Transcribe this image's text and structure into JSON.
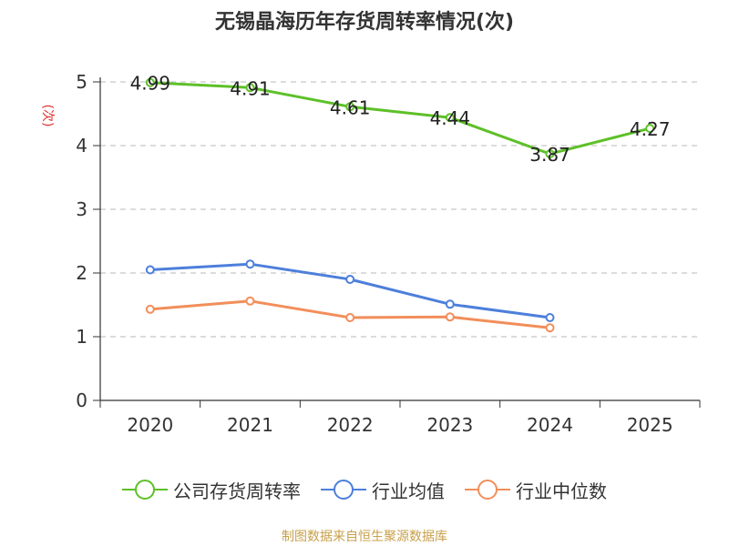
{
  "chart_data": {
    "type": "line",
    "title": "无锡晶海历年存货周转率情况(次)",
    "ylabel": "(次)",
    "xlabel": "",
    "categories": [
      "2020",
      "2021",
      "2022",
      "2023",
      "2024",
      "2025"
    ],
    "ylim": [
      0,
      5
    ],
    "yticks": [
      "0",
      "1",
      "2",
      "3",
      "4",
      "5"
    ],
    "grid": true,
    "legend_position": "bottom",
    "series": [
      {
        "name": "公司存货周转率",
        "color": "#5dc028",
        "values": [
          4.99,
          4.91,
          4.61,
          4.44,
          3.87,
          4.27
        ],
        "labels": [
          "4.99",
          "4.91",
          "4.61",
          "4.44",
          "3.87",
          "4.27"
        ],
        "show_labels": true
      },
      {
        "name": "行业均值",
        "color": "#4d7fdb",
        "values": [
          2.05,
          2.14,
          1.9,
          1.51,
          1.3,
          null
        ],
        "show_labels": false
      },
      {
        "name": "行业中位数",
        "color": "#f28e5a",
        "values": [
          1.43,
          1.56,
          1.3,
          1.31,
          1.14,
          null
        ],
        "show_labels": false
      }
    ],
    "source": "制图数据来自恒生聚源数据库"
  }
}
